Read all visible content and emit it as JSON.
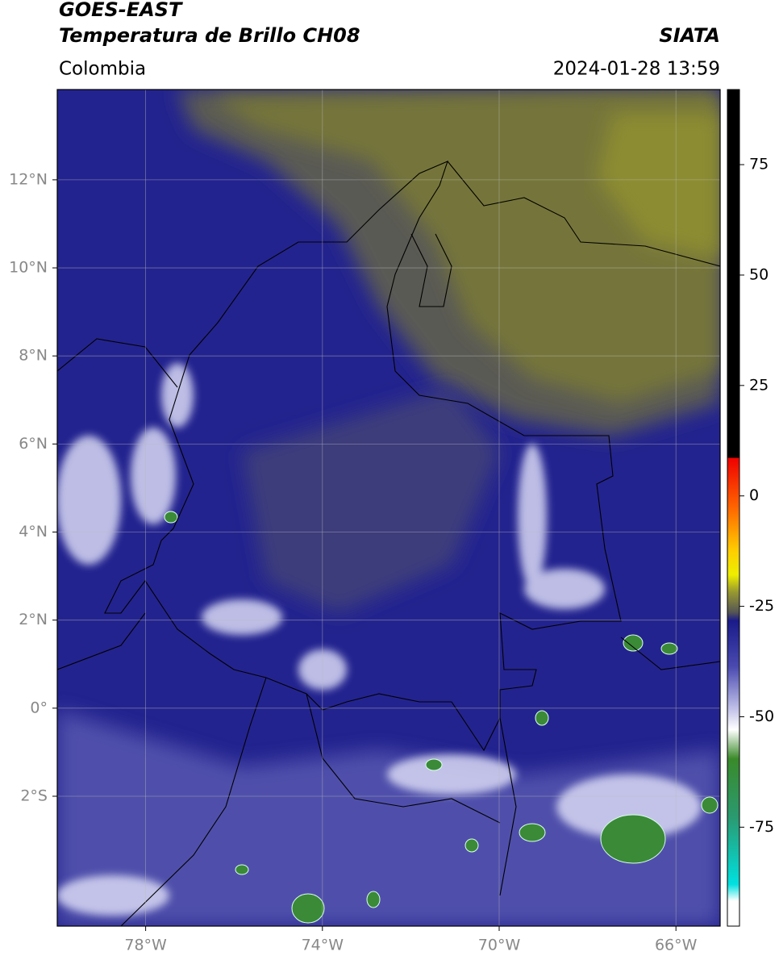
{
  "header": {
    "title_line1": "GOES-EAST",
    "title_line2": "Temperatura de Brillo CH08",
    "region": "Colombia",
    "source": "SIATA",
    "datetime": "2024-01-28 13:59"
  },
  "map": {
    "xlim": [
      -80,
      -65
    ],
    "ylim": [
      -4.95,
      14.05
    ],
    "grid": true,
    "yticks": [
      {
        "value": 12,
        "label": "12°N"
      },
      {
        "value": 10,
        "label": "10°N"
      },
      {
        "value": 8,
        "label": "8°N"
      },
      {
        "value": 6,
        "label": "6°N"
      },
      {
        "value": 4,
        "label": "4°N"
      },
      {
        "value": 2,
        "label": "2°N"
      },
      {
        "value": 0,
        "label": "0°"
      },
      {
        "value": -2,
        "label": "2°S"
      }
    ],
    "xticks": [
      {
        "value": -78,
        "label": "78°W"
      },
      {
        "value": -74,
        "label": "74°W"
      },
      {
        "value": -70,
        "label": "70°W"
      },
      {
        "value": -66,
        "label": "66°W"
      }
    ]
  },
  "colorbar": {
    "lim": [
      -97.4,
      92
    ],
    "ticks": [
      75,
      50,
      25,
      0,
      -25,
      -50,
      -75
    ]
  }
}
